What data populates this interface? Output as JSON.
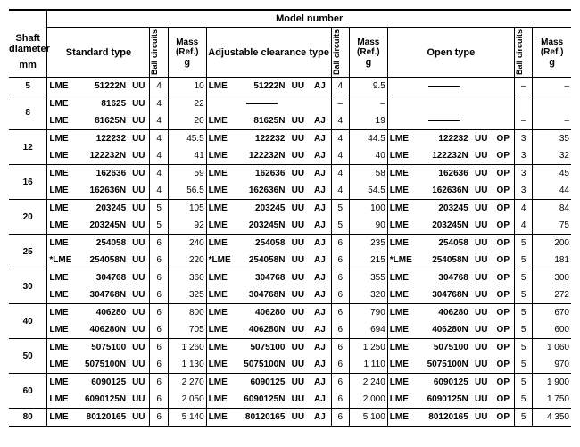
{
  "headers": {
    "model_number": "Model number",
    "shaft_diameter": "Shaft diameter",
    "shaft_unit": "mm",
    "standard_type": "Standard type",
    "adjustable_type": "Adjustable clearance type",
    "open_type": "Open type",
    "ball_circuits": "Ball circuits",
    "mass_ref": "Mass (Ref.)",
    "mass_unit": "g"
  },
  "rows": [
    {
      "shaft": "5",
      "rowspan": 1,
      "top": true,
      "cells": [
        {
          "lme": "LME",
          "num": "51222N",
          "uu": "UU",
          "bc1": "4",
          "m1": "10",
          "alme": "LME",
          "anum": "51222N",
          "auu": "UU",
          "aaj": "AJ",
          "bc2": "4",
          "m2": "9.5",
          "olme": "",
          "onum": "dash",
          "ouu": "",
          "oop": "",
          "bc3": "–",
          "m3": "–"
        }
      ]
    },
    {
      "shaft": "8",
      "rowspan": 2,
      "top": true,
      "cells": [
        {
          "lme": "LME",
          "num": "81625",
          "uu": "UU",
          "bc1": "4",
          "m1": "22",
          "alme": "",
          "anum": "dash",
          "auu": "",
          "aaj": "",
          "bc2": "–",
          "m2": "–",
          "olme": "",
          "onum": "",
          "ouu": "",
          "oop": "",
          "bc3": "",
          "m3": ""
        },
        {
          "lme": "LME",
          "num": "81625N",
          "uu": "UU",
          "bc1": "4",
          "m1": "20",
          "alme": "LME",
          "anum": "81625N",
          "auu": "UU",
          "aaj": "AJ",
          "bc2": "4",
          "m2": "19",
          "olme": "",
          "onum": "dash",
          "ouu": "",
          "oop": "",
          "bc3": "–",
          "m3": "–"
        }
      ]
    },
    {
      "shaft": "12",
      "rowspan": 2,
      "top": true,
      "cells": [
        {
          "lme": "LME",
          "num": "122232",
          "uu": "UU",
          "bc1": "4",
          "m1": "45.5",
          "alme": "LME",
          "anum": "122232",
          "auu": "UU",
          "aaj": "AJ",
          "bc2": "4",
          "m2": "44.5",
          "olme": "LME",
          "onum": "122232",
          "ouu": "UU",
          "oop": "OP",
          "bc3": "3",
          "m3": "35"
        },
        {
          "lme": "LME",
          "num": "122232N",
          "uu": "UU",
          "bc1": "4",
          "m1": "41",
          "alme": "LME",
          "anum": "122232N",
          "auu": "UU",
          "aaj": "AJ",
          "bc2": "4",
          "m2": "40",
          "olme": "LME",
          "onum": "122232N",
          "ouu": "UU",
          "oop": "OP",
          "bc3": "3",
          "m3": "32"
        }
      ]
    },
    {
      "shaft": "16",
      "rowspan": 2,
      "top": true,
      "cells": [
        {
          "lme": "LME",
          "num": "162636",
          "uu": "UU",
          "bc1": "4",
          "m1": "59",
          "alme": "LME",
          "anum": "162636",
          "auu": "UU",
          "aaj": "AJ",
          "bc2": "4",
          "m2": "58",
          "olme": "LME",
          "onum": "162636",
          "ouu": "UU",
          "oop": "OP",
          "bc3": "3",
          "m3": "45"
        },
        {
          "lme": "LME",
          "num": "162636N",
          "uu": "UU",
          "bc1": "4",
          "m1": "56.5",
          "alme": "LME",
          "anum": "162636N",
          "auu": "UU",
          "aaj": "AJ",
          "bc2": "4",
          "m2": "54.5",
          "olme": "LME",
          "onum": "162636N",
          "ouu": "UU",
          "oop": "OP",
          "bc3": "3",
          "m3": "44"
        }
      ]
    },
    {
      "shaft": "20",
      "rowspan": 2,
      "top": true,
      "cells": [
        {
          "lme": "LME",
          "num": "203245",
          "uu": "UU",
          "bc1": "5",
          "m1": "105",
          "alme": "LME",
          "anum": "203245",
          "auu": "UU",
          "aaj": "AJ",
          "bc2": "5",
          "m2": "100",
          "olme": "LME",
          "onum": "203245",
          "ouu": "UU",
          "oop": "OP",
          "bc3": "4",
          "m3": "84"
        },
        {
          "lme": "LME",
          "num": "203245N",
          "uu": "UU",
          "bc1": "5",
          "m1": "92",
          "alme": "LME",
          "anum": "203245N",
          "auu": "UU",
          "aaj": "AJ",
          "bc2": "5",
          "m2": "90",
          "olme": "LME",
          "onum": "203245N",
          "ouu": "UU",
          "oop": "OP",
          "bc3": "4",
          "m3": "75"
        }
      ]
    },
    {
      "shaft": "25",
      "rowspan": 2,
      "top": true,
      "cells": [
        {
          "lme": "LME",
          "num": "254058",
          "uu": "UU",
          "bc1": "6",
          "m1": "240",
          "alme": "LME",
          "anum": "254058",
          "auu": "UU",
          "aaj": "AJ",
          "bc2": "6",
          "m2": "235",
          "olme": "LME",
          "onum": "254058",
          "ouu": "UU",
          "oop": "OP",
          "bc3": "5",
          "m3": "200"
        },
        {
          "lme": "*LME",
          "num": "254058N",
          "uu": "UU",
          "bc1": "6",
          "m1": "220",
          "alme": "*LME",
          "anum": "254058N",
          "auu": "UU",
          "aaj": "AJ",
          "bc2": "6",
          "m2": "215",
          "olme": "*LME",
          "onum": "254058N",
          "ouu": "UU",
          "oop": "OP",
          "bc3": "5",
          "m3": "181"
        }
      ]
    },
    {
      "shaft": "30",
      "rowspan": 2,
      "top": true,
      "cells": [
        {
          "lme": "LME",
          "num": "304768",
          "uu": "UU",
          "bc1": "6",
          "m1": "360",
          "alme": "LME",
          "anum": "304768",
          "auu": "UU",
          "aaj": "AJ",
          "bc2": "6",
          "m2": "355",
          "olme": "LME",
          "onum": "304768",
          "ouu": "UU",
          "oop": "OP",
          "bc3": "5",
          "m3": "300"
        },
        {
          "lme": "LME",
          "num": "304768N",
          "uu": "UU",
          "bc1": "6",
          "m1": "325",
          "alme": "LME",
          "anum": "304768N",
          "auu": "UU",
          "aaj": "AJ",
          "bc2": "6",
          "m2": "320",
          "olme": "LME",
          "onum": "304768N",
          "ouu": "UU",
          "oop": "OP",
          "bc3": "5",
          "m3": "272"
        }
      ]
    },
    {
      "shaft": "40",
      "rowspan": 2,
      "top": true,
      "cells": [
        {
          "lme": "LME",
          "num": "406280",
          "uu": "UU",
          "bc1": "6",
          "m1": "800",
          "alme": "LME",
          "anum": "406280",
          "auu": "UU",
          "aaj": "AJ",
          "bc2": "6",
          "m2": "790",
          "olme": "LME",
          "onum": "406280",
          "ouu": "UU",
          "oop": "OP",
          "bc3": "5",
          "m3": "670"
        },
        {
          "lme": "LME",
          "num": "406280N",
          "uu": "UU",
          "bc1": "6",
          "m1": "705",
          "alme": "LME",
          "anum": "406280N",
          "auu": "UU",
          "aaj": "AJ",
          "bc2": "6",
          "m2": "694",
          "olme": "LME",
          "onum": "406280N",
          "ouu": "UU",
          "oop": "OP",
          "bc3": "5",
          "m3": "600"
        }
      ]
    },
    {
      "shaft": "50",
      "rowspan": 2,
      "top": true,
      "cells": [
        {
          "lme": "LME",
          "num": "5075100",
          "uu": "UU",
          "bc1": "6",
          "m1": "1 260",
          "alme": "LME",
          "anum": "5075100",
          "auu": "UU",
          "aaj": "AJ",
          "bc2": "6",
          "m2": "1 250",
          "olme": "LME",
          "onum": "5075100",
          "ouu": "UU",
          "oop": "OP",
          "bc3": "5",
          "m3": "1 060"
        },
        {
          "lme": "LME",
          "num": "5075100N",
          "uu": "UU",
          "bc1": "6",
          "m1": "1 130",
          "alme": "LME",
          "anum": "5075100N",
          "auu": "UU",
          "aaj": "AJ",
          "bc2": "6",
          "m2": "1 110",
          "olme": "LME",
          "onum": "5075100N",
          "ouu": "UU",
          "oop": "OP",
          "bc3": "5",
          "m3": "970"
        }
      ]
    },
    {
      "shaft": "60",
      "rowspan": 2,
      "top": true,
      "cells": [
        {
          "lme": "LME",
          "num": "6090125",
          "uu": "UU",
          "bc1": "6",
          "m1": "2 270",
          "alme": "LME",
          "anum": "6090125",
          "auu": "UU",
          "aaj": "AJ",
          "bc2": "6",
          "m2": "2 240",
          "olme": "LME",
          "onum": "6090125",
          "ouu": "UU",
          "oop": "OP",
          "bc3": "5",
          "m3": "1 900"
        },
        {
          "lme": "LME",
          "num": "6090125N",
          "uu": "UU",
          "bc1": "6",
          "m1": "2 050",
          "alme": "LME",
          "anum": "6090125N",
          "auu": "UU",
          "aaj": "AJ",
          "bc2": "6",
          "m2": "2 000",
          "olme": "LME",
          "onum": "6090125N",
          "ouu": "UU",
          "oop": "OP",
          "bc3": "5",
          "m3": "1 750"
        }
      ]
    },
    {
      "shaft": "80",
      "rowspan": 1,
      "top": true,
      "bottom": true,
      "cells": [
        {
          "lme": "LME",
          "num": "80120165",
          "uu": "UU",
          "bc1": "6",
          "m1": "5 140",
          "alme": "LME",
          "anum": "80120165",
          "auu": "UU",
          "aaj": "AJ",
          "bc2": "6",
          "m2": "5 100",
          "olme": "LME",
          "onum": "80120165",
          "ouu": "UU",
          "oop": "OP",
          "bc3": "5",
          "m3": "4 350"
        }
      ]
    }
  ]
}
